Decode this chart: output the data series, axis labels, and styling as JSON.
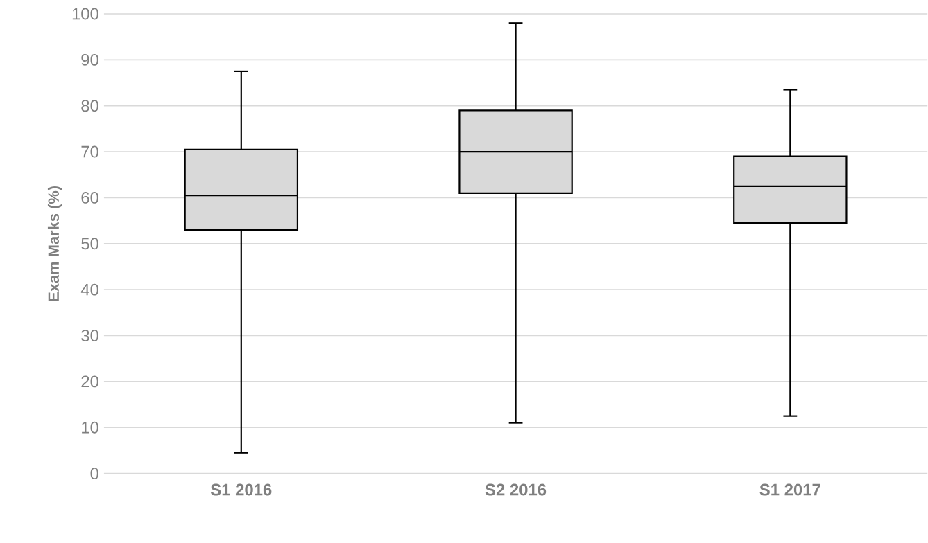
{
  "chart_data": {
    "type": "box",
    "ylabel": "Exam Marks (%)",
    "categories": [
      "S1 2016",
      "S2 2016",
      "S1 2017"
    ],
    "boxes": [
      {
        "low": 4.5,
        "q1": 53,
        "median": 60.5,
        "q3": 70.5,
        "high": 87.5
      },
      {
        "low": 11,
        "q1": 61,
        "median": 70,
        "q3": 79,
        "high": 98
      },
      {
        "low": 12.5,
        "q1": 54.5,
        "median": 62.5,
        "q3": 69,
        "high": 83.5
      }
    ],
    "color": "#d9d9d9",
    "ylim": [
      0,
      100
    ],
    "yticks": [
      0,
      10,
      20,
      30,
      40,
      50,
      60,
      70,
      80,
      90,
      100
    ],
    "grid": "y"
  }
}
